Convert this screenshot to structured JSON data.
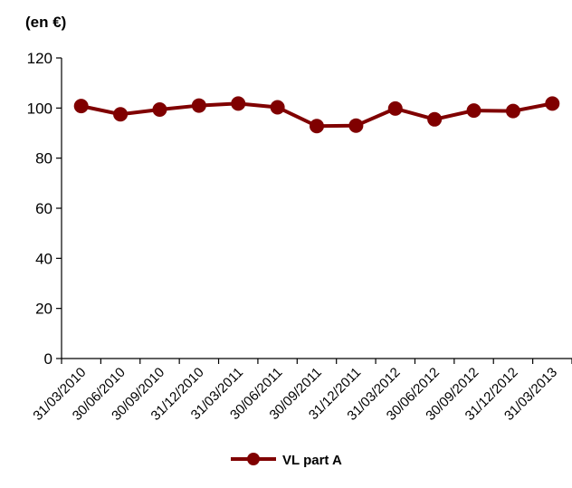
{
  "chart_data": {
    "type": "line",
    "unit_label": "(en €)",
    "categories": [
      "31/03/2010",
      "30/06/2010",
      "30/09/2010",
      "31/12/2010",
      "31/03/2011",
      "30/06/2011",
      "30/09/2011",
      "31/12/2011",
      "31/03/2012",
      "30/06/2012",
      "30/09/2012",
      "31/12/2012",
      "31/03/2013"
    ],
    "series": [
      {
        "name": "VL part A",
        "values": [
          100.8,
          97.5,
          99.4,
          101.0,
          101.8,
          100.3,
          92.8,
          93.0,
          99.8,
          95.5,
          99.0,
          98.8,
          101.8
        ]
      }
    ],
    "ylim": [
      0,
      120
    ],
    "yticks": [
      0,
      20,
      40,
      60,
      80,
      100,
      120
    ],
    "grid": false,
    "legend_position": "bottom",
    "series_color": "#800000"
  }
}
